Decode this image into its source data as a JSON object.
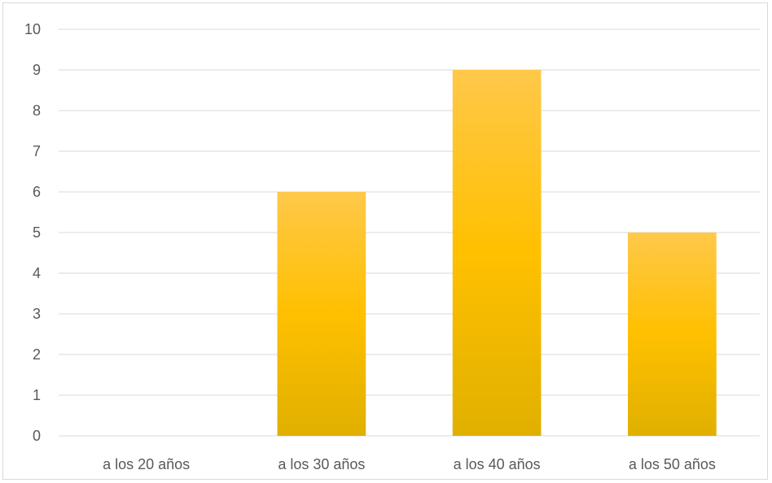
{
  "chart_data": {
    "type": "bar",
    "title": "",
    "xlabel": "",
    "ylabel": "",
    "categories": [
      "a los 20 años",
      "a los 30 años",
      "a los 40 años",
      "a los 50 años"
    ],
    "series": [
      {
        "values": [
          0,
          6,
          9,
          5
        ],
        "color": "#FFC000"
      }
    ],
    "ylim": [
      0,
      10
    ],
    "yticks": [
      "0",
      "1",
      "2",
      "3",
      "4",
      "5",
      "6",
      "7",
      "8",
      "9",
      "10"
    ],
    "grid": true,
    "legend": "none"
  },
  "colors": {
    "bar_top": "#FFC84A",
    "bar_mid": "#FFC000",
    "bar_bottom": "#E0B000",
    "grid": "#D9D9D9",
    "text": "#595959"
  }
}
